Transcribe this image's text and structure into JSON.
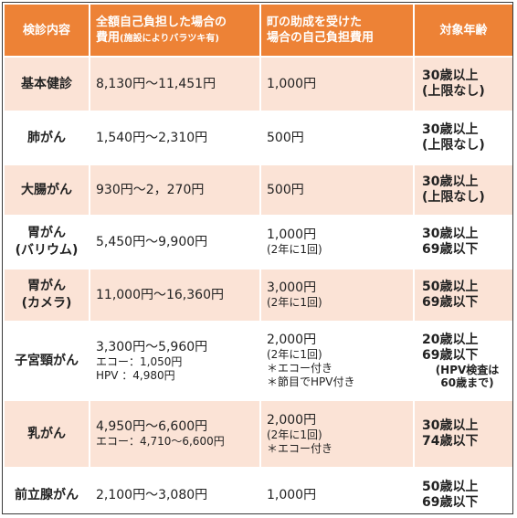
{
  "header": {
    "col1": "検診内容",
    "col2_line1": "全額自己負担した場合の",
    "col2_line2": "費用",
    "col2_sub": "(施設によりバラツキ有)",
    "col3_line1": "町の助成を受けた",
    "col3_line2": "場合の自己負担費用",
    "col4": "対象年齢"
  },
  "rows": [
    {
      "name_lines": [
        "基本健診"
      ],
      "cost_lines": [
        "8,130円～11,451円"
      ],
      "subsidy_main": "1,000円",
      "subsidy_notes": [],
      "age_lines": [
        "30歳以上",
        "(上限なし)"
      ],
      "age_note_lines": []
    },
    {
      "name_lines": [
        "肺がん"
      ],
      "cost_lines": [
        "1,540円～2,310円"
      ],
      "subsidy_main": "500円",
      "subsidy_notes": [],
      "age_lines": [
        "30歳以上",
        "(上限なし)"
      ],
      "age_note_lines": []
    },
    {
      "name_lines": [
        "大腸がん"
      ],
      "cost_lines": [
        "930円～2，270円"
      ],
      "subsidy_main": "500円",
      "subsidy_notes": [],
      "age_lines": [
        "30歳以上",
        "(上限なし)"
      ],
      "age_note_lines": []
    },
    {
      "name_lines": [
        "胃がん",
        "(バリウム)"
      ],
      "cost_lines": [
        "5,450円～9,900円"
      ],
      "subsidy_main": "1,000円",
      "subsidy_notes": [
        "(2年に1回)"
      ],
      "age_lines": [
        "30歳以上",
        "69歳以下"
      ],
      "age_note_lines": []
    },
    {
      "name_lines": [
        "胃がん",
        "(カメラ)"
      ],
      "cost_lines": [
        "11,000円～16,360円"
      ],
      "subsidy_main": "3,000円",
      "subsidy_notes": [
        "(2年に1回)"
      ],
      "age_lines": [
        "50歳以上",
        "69歳以下"
      ],
      "age_note_lines": []
    },
    {
      "name_lines": [
        "子宮頸がん"
      ],
      "cost_lines": [
        "3,300円～5,960円",
        "エコー：1,050円",
        "HPV ：4,980円"
      ],
      "subsidy_main": "2,000円",
      "subsidy_notes": [
        "(2年に1回)",
        "＊エコー付き",
        "＊節目でHPV付き"
      ],
      "age_lines": [
        "20歳以上",
        "69歳以下"
      ],
      "age_note_lines": [
        "(HPV検査は",
        "60歳まで)"
      ]
    },
    {
      "name_lines": [
        "乳がん"
      ],
      "cost_lines": [
        "4,950円～6,600円",
        "エコー：4,710～6,600円"
      ],
      "subsidy_main": "2,000円",
      "subsidy_notes": [
        "(2年に1回)",
        "＊エコー付き"
      ],
      "age_lines": [
        "30歳以上",
        "74歳以下"
      ],
      "age_note_lines": []
    },
    {
      "name_lines": [
        "前立腺がん"
      ],
      "cost_lines": [
        "2,100円～3,080円"
      ],
      "subsidy_main": "1,000円",
      "subsidy_notes": [],
      "age_lines": [
        "50歳以上",
        "69歳以下"
      ],
      "age_note_lines": []
    }
  ],
  "colors": {
    "header_bg": "#ed8236",
    "header_text": "#ffffff",
    "row_odd_bg": "#fbe3d6",
    "row_even_bg": "#ffffff"
  }
}
